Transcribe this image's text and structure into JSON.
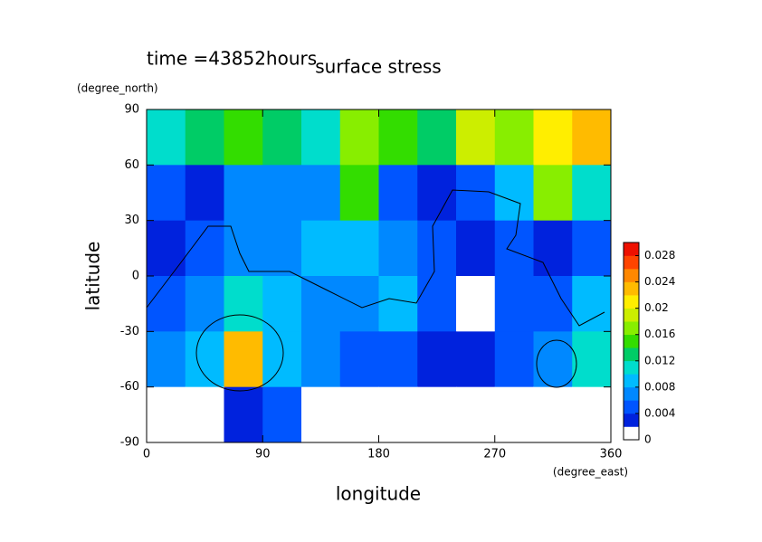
{
  "chart_data": {
    "type": "heatmap",
    "title": "surface stress",
    "subtitle": "time =43852hours",
    "x_label": "longitude",
    "x_unit": "(degree_east)",
    "y_label": "latitude",
    "y_unit": "(degree_north)",
    "xlim": [
      0,
      360
    ],
    "xticks": [
      0,
      90,
      180,
      270,
      360
    ],
    "ylim": [
      -90,
      90
    ],
    "yticks": [
      -90,
      -60,
      -30,
      0,
      30,
      60,
      90
    ],
    "x": [
      15,
      45,
      75,
      105,
      135,
      165,
      195,
      225,
      255,
      285,
      315,
      345
    ],
    "y": [
      75,
      45,
      15,
      -15,
      -45,
      -75
    ],
    "z": [
      [
        0.01,
        0.012,
        0.014,
        0.012,
        0.01,
        0.016,
        0.014,
        0.012,
        0.018,
        0.016,
        0.02,
        0.022
      ],
      [
        0.004,
        0.003,
        0.006,
        0.006,
        0.006,
        0.014,
        0.004,
        0.002,
        0.004,
        0.008,
        0.016,
        0.01
      ],
      [
        0.002,
        0.004,
        0.006,
        0.006,
        0.008,
        0.008,
        0.006,
        0.004,
        0.002,
        0.004,
        0.003,
        0.004
      ],
      [
        0.004,
        0.006,
        0.01,
        0.008,
        0.006,
        0.006,
        0.008,
        0.004,
        0.001,
        0.004,
        0.004,
        0.008
      ],
      [
        0.006,
        0.008,
        0.022,
        0.008,
        0.006,
        0.004,
        0.004,
        0.002,
        0.003,
        0.004,
        0.006,
        0.01
      ],
      [
        0,
        0,
        0.002,
        0.004,
        0,
        0,
        0,
        0,
        0,
        0,
        0,
        0
      ]
    ],
    "clim": [
      0,
      0.03
    ],
    "cticks": [
      0,
      0.004,
      0.008,
      0.012,
      0.016,
      0.02,
      0.024,
      0.028
    ],
    "colors": [
      "#ffffff",
      "#0022dd",
      "#0055ff",
      "#0088ff",
      "#00bbff",
      "#00ddcc",
      "#00cc66",
      "#33dd00",
      "#88ee00",
      "#ccee00",
      "#ffee00",
      "#ffbb00",
      "#ff8800",
      "#ff4400",
      "#ee1100"
    ]
  }
}
